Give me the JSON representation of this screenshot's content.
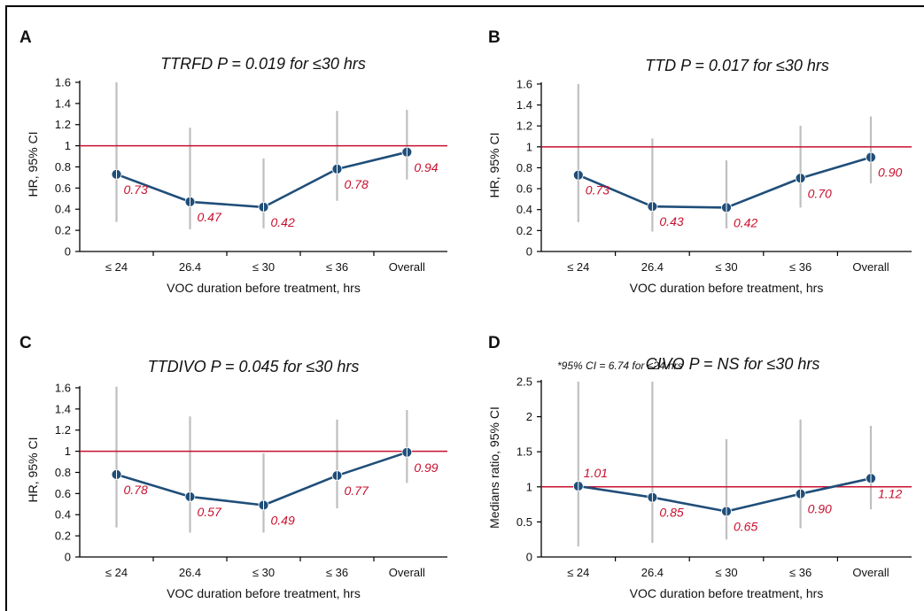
{
  "colors": {
    "series": "#1f4e79",
    "marker": "#1f4e79",
    "error_bar": "#bfbfbf",
    "reference_line": "#c8102e",
    "data_label": "#c8102e",
    "axis": "#000000"
  },
  "chart_data": [
    {
      "panel": "A",
      "type": "line",
      "title": "TTRFD P = 0.019 for ≤30 hrs",
      "xlabel": "VOC duration before treatment, hrs",
      "ylabel": "HR, 95% CI",
      "categories": [
        "≤ 24",
        "26.4",
        "≤ 30",
        "≤ 36",
        "Overall"
      ],
      "values": [
        0.73,
        0.47,
        0.42,
        0.78,
        0.94
      ],
      "value_labels": [
        "0.73",
        "0.47",
        "0.42",
        "0.78",
        "0.94"
      ],
      "ci_low": [
        0.28,
        0.21,
        0.22,
        0.48,
        0.68
      ],
      "ci_high": [
        1.6,
        1.17,
        0.88,
        1.33,
        1.34
      ],
      "reference_line": 1,
      "yticks": [
        0,
        0.2,
        0.4,
        0.6,
        0.8,
        1,
        1.2,
        1.4,
        1.6
      ],
      "ytick_labels": [
        "0",
        "0.2",
        "0.4",
        "0.6",
        "0.8",
        "1",
        "1.2",
        "1.4",
        "1.6"
      ],
      "ylim": [
        0,
        1.65
      ],
      "grid": false,
      "note": ""
    },
    {
      "panel": "B",
      "type": "line",
      "title": "TTD P = 0.017 for ≤30 hrs",
      "xlabel": "VOC duration before treatment, hrs",
      "ylabel": "HR, 95% CI",
      "categories": [
        "≤ 24",
        "26.4",
        "≤ 30",
        "≤ 36",
        "Overall"
      ],
      "values": [
        0.73,
        0.43,
        0.42,
        0.7,
        0.9
      ],
      "value_labels": [
        "0.73",
        "0.43",
        "0.42",
        "0.70",
        "0.90"
      ],
      "ci_low": [
        0.28,
        0.19,
        0.22,
        0.42,
        0.65
      ],
      "ci_high": [
        1.6,
        1.08,
        0.87,
        1.2,
        1.29
      ],
      "reference_line": 1,
      "yticks": [
        0,
        0.2,
        0.4,
        0.6,
        0.8,
        1,
        1.2,
        1.4,
        1.6
      ],
      "ytick_labels": [
        "0",
        "0.2",
        "0.4",
        "0.6",
        "0.8",
        "1",
        "1.2",
        "1.4",
        "1.6"
      ],
      "ylim": [
        0,
        1.65
      ],
      "grid": false,
      "note": ""
    },
    {
      "panel": "C",
      "type": "line",
      "title": "TTDIVO P = 0.045 for ≤30 hrs",
      "xlabel": "VOC duration before treatment, hrs",
      "ylabel": "HR, 95% CI",
      "categories": [
        "≤ 24",
        "26.4",
        "≤ 30",
        "≤ 36",
        "Overall"
      ],
      "values": [
        0.78,
        0.57,
        0.49,
        0.77,
        0.99
      ],
      "value_labels": [
        "0.78",
        "0.57",
        "0.49",
        "0.77",
        "0.99"
      ],
      "ci_low": [
        0.28,
        0.23,
        0.23,
        0.46,
        0.7
      ],
      "ci_high": [
        1.61,
        1.33,
        0.98,
        1.3,
        1.39
      ],
      "reference_line": 1,
      "yticks": [
        0,
        0.2,
        0.4,
        0.6,
        0.8,
        1,
        1.2,
        1.4,
        1.6
      ],
      "ytick_labels": [
        "0",
        "0.2",
        "0.4",
        "0.6",
        "0.8",
        "1",
        "1.2",
        "1.4",
        "1.6"
      ],
      "ylim": [
        0,
        1.65
      ],
      "grid": false,
      "note": ""
    },
    {
      "panel": "D",
      "type": "line",
      "title": "CIVO P = NS for ≤30 hrs",
      "xlabel": "VOC duration before treatment, hrs",
      "ylabel": "Medians ratio, 95% CI",
      "categories": [
        "≤ 24",
        "26.4",
        "≤ 30",
        "≤ 36",
        "Overall"
      ],
      "values": [
        1.01,
        0.85,
        0.65,
        0.9,
        1.12
      ],
      "value_labels": [
        "1.01",
        "0.85",
        "0.65",
        "0.90",
        "1.12"
      ],
      "ci_low": [
        0.15,
        0.2,
        0.25,
        0.41,
        0.68
      ],
      "ci_high": [
        2.5,
        2.5,
        1.68,
        1.96,
        1.87
      ],
      "reference_line": 1,
      "yticks": [
        0,
        0.5,
        1,
        1.5,
        2,
        2.5
      ],
      "ytick_labels": [
        "0",
        "0.5",
        "1",
        "1.5",
        "2",
        "2.5"
      ],
      "ylim": [
        0,
        2.55
      ],
      "grid": false,
      "note": "*95% CI = 6.74 for ≤24 hrs"
    }
  ]
}
